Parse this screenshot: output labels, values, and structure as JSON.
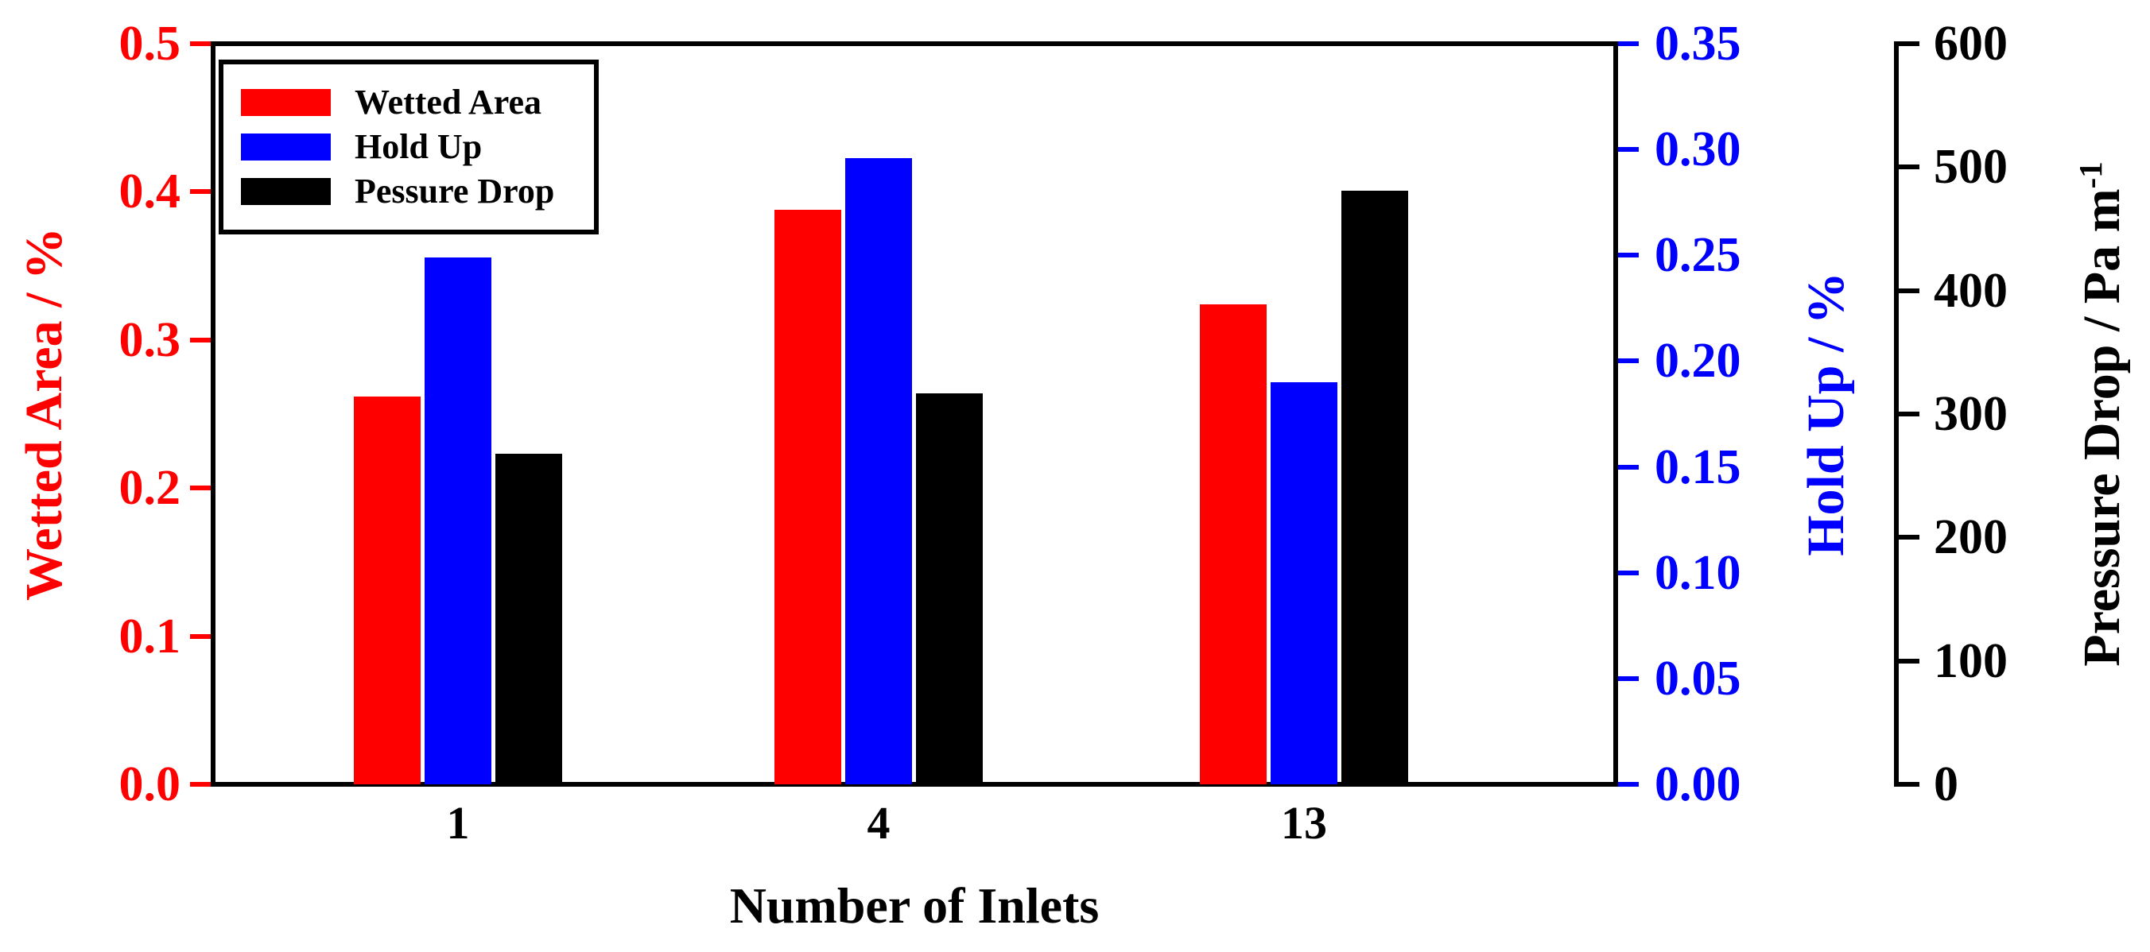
{
  "chart_data": {
    "type": "bar",
    "title": "",
    "xlabel": "Number of Inlets",
    "categories": [
      "1",
      "4",
      "13"
    ],
    "series": [
      {
        "name": "Wetted Area",
        "axis": "left",
        "color": "#ff0000",
        "values": [
          0.262,
          0.388,
          0.324
        ]
      },
      {
        "name": "Hold Up",
        "axis": "right1",
        "color": "#0000ff",
        "values": [
          0.249,
          0.296,
          0.19
        ]
      },
      {
        "name": "Pessure Drop",
        "axis": "right2",
        "color": "#000000",
        "values": [
          268,
          317,
          481
        ]
      }
    ],
    "axes": {
      "left": {
        "label": "Wetted Area / %",
        "color": "#ff0000",
        "min": 0,
        "max": 0.5,
        "ticks": [
          "0.0",
          "0.1",
          "0.2",
          "0.3",
          "0.4",
          "0.5"
        ]
      },
      "right1": {
        "label": "Hold Up / %",
        "color": "#0000ff",
        "min": 0,
        "max": 0.35,
        "ticks": [
          "0.00",
          "0.05",
          "0.10",
          "0.15",
          "0.20",
          "0.25",
          "0.30",
          "0.35"
        ]
      },
      "right2": {
        "label": "Pressure Drop / Pa m⁻¹",
        "label_main": "Pressure Drop / Pa m",
        "label_sup": "-1",
        "color": "#000000",
        "min": 0,
        "max": 600,
        "ticks": [
          "0",
          "100",
          "200",
          "300",
          "400",
          "500",
          "600"
        ]
      }
    },
    "legend": {
      "position": "top-left",
      "entries": [
        "Wetted Area",
        "Hold Up",
        "Pessure Drop"
      ]
    },
    "grid": false,
    "background": "#ffffff"
  }
}
